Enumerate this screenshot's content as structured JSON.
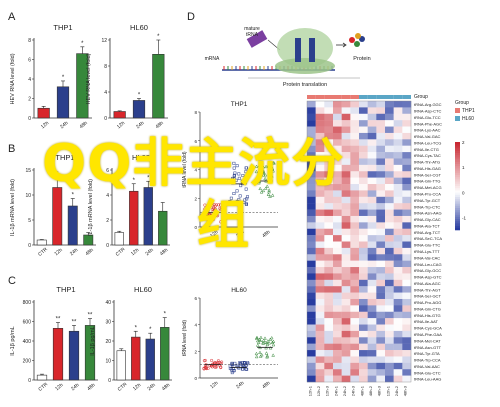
{
  "panels": {
    "A": "A",
    "B": "B",
    "C": "C",
    "D": "D"
  },
  "bar_charts": [
    {
      "id": "A1",
      "title": "THP1",
      "ylabel": "HEV RNA level (fold)",
      "cats": [
        "12h",
        "24h",
        "48h"
      ],
      "values": [
        1.0,
        3.2,
        6.6
      ],
      "err": [
        0.2,
        0.6,
        0.7
      ],
      "ymax": 8,
      "ticks": [
        0,
        2,
        4,
        6,
        8
      ],
      "colors": [
        "#d8262b",
        "#2b3f8c",
        "#37883b"
      ],
      "stars": [
        "",
        "*",
        "*"
      ]
    },
    {
      "id": "A2",
      "title": "HL60",
      "ylabel": "HEV RNA level (fold)",
      "cats": [
        "12h",
        "24h",
        "48h"
      ],
      "values": [
        1.0,
        2.7,
        9.8
      ],
      "err": [
        0.1,
        0.3,
        2.2
      ],
      "ymax": 12,
      "ticks": [
        0,
        4,
        8,
        12
      ],
      "colors": [
        "#d8262b",
        "#2b3f8c",
        "#37883b"
      ],
      "stars": [
        "",
        "*",
        "*"
      ]
    },
    {
      "id": "B1",
      "title": "THP1",
      "ylabel": "IL-1β mRNA level (fold)",
      "cats": [
        "CTR",
        "12h",
        "24h",
        "48h"
      ],
      "values": [
        1.0,
        11.5,
        7.8,
        2.0
      ],
      "err": [
        0.1,
        2.0,
        1.5,
        0.5
      ],
      "ymax": 15,
      "ticks": [
        0,
        5,
        10,
        15
      ],
      "colors": [
        "#ffffff",
        "#d8262b",
        "#2b3f8c",
        "#37883b"
      ],
      "stars": [
        "",
        "*",
        "*",
        ""
      ]
    },
    {
      "id": "B2",
      "title": "HL60",
      "ylabel": "IL-1β mRNA level (fold)",
      "cats": [
        "CTR",
        "12h",
        "24h",
        "48h"
      ],
      "values": [
        1.0,
        4.3,
        4.6,
        2.7
      ],
      "err": [
        0.1,
        0.6,
        0.5,
        0.7
      ],
      "ymax": 6,
      "ticks": [
        0,
        2,
        4,
        6
      ],
      "colors": [
        "#ffffff",
        "#d8262b",
        "#2b3f8c",
        "#37883b"
      ],
      "stars": [
        "",
        "*",
        "*",
        ""
      ]
    },
    {
      "id": "C1",
      "title": "THP1",
      "ylabel": "IL-1β pg/mL",
      "cats": [
        "CTR",
        "12h",
        "24h",
        "48h"
      ],
      "values": [
        50,
        530,
        500,
        560
      ],
      "err": [
        10,
        60,
        60,
        70
      ],
      "ymax": 800,
      "ticks": [
        0,
        200,
        400,
        600,
        800
      ],
      "colors": [
        "#ffffff",
        "#d8262b",
        "#2b3f8c",
        "#37883b"
      ],
      "stars": [
        "",
        "**",
        "**",
        "**"
      ]
    },
    {
      "id": "C2",
      "title": "HL60",
      "ylabel": "IL-1β pg/mL",
      "cats": [
        "CTR",
        "12h",
        "24h",
        "48h"
      ],
      "values": [
        15,
        22,
        21,
        27
      ],
      "err": [
        1,
        3,
        3,
        5
      ],
      "ymax": 40,
      "ticks": [
        0,
        10,
        20,
        30,
        40
      ],
      "colors": [
        "#ffffff",
        "#d8262b",
        "#2b3f8c",
        "#37883b"
      ],
      "stars": [
        "",
        "*",
        "*",
        "*"
      ]
    }
  ],
  "scatter_charts": [
    {
      "id": "D1",
      "title": "THP1",
      "ylabel": "tRNA level (fold)",
      "cats": [
        "12h",
        "24h",
        "48h"
      ],
      "ymax": 8,
      "ticks": [
        0,
        2,
        4,
        6,
        8
      ],
      "colors": [
        "#d8262b",
        "#2b3f8c",
        "#37883b"
      ],
      "means": [
        1.0,
        3.0,
        3.2
      ],
      "spread": [
        0.8,
        1.8,
        1.6
      ]
    },
    {
      "id": "D2",
      "title": "HL60",
      "ylabel": "tRNA level (fold)",
      "cats": [
        "12h",
        "24h",
        "48h"
      ],
      "ymax": 6,
      "ticks": [
        0,
        2,
        4,
        6
      ],
      "colors": [
        "#d8262b",
        "#2b3f8c",
        "#37883b"
      ],
      "means": [
        1.0,
        0.8,
        2.3
      ],
      "spread": [
        0.4,
        0.5,
        1.0
      ]
    }
  ],
  "schematic": {
    "mature_trna": "mature\ntRNA",
    "mrna": "mRNA",
    "protein": "Protein",
    "caption": "Protein translation"
  },
  "heatmap": {
    "group_label": "Group",
    "legend_title": "Group",
    "legend_items": [
      {
        "name": "THP1",
        "color": "#e87a72"
      },
      {
        "name": "HL60",
        "color": "#5aa6c6"
      }
    ],
    "scale_ticks": [
      "2",
      "1",
      "0",
      "-1"
    ],
    "n_cols": 12,
    "thp1_cols": 6,
    "col_labels": [
      "12h-1",
      "12h-2",
      "12h-3",
      "24h-1",
      "24h-2",
      "24h-3",
      "48h-1",
      "48h-2",
      "48h-3",
      "12h-1",
      "24h-2",
      "48h-3"
    ],
    "rows": [
      "tRNA-Arg-GGC",
      "tRNA-Asp-CTC",
      "tRNA-Glu-TCC",
      "tRNA-Phe-AGC",
      "tRNA-Lys-AAC",
      "tRNA-Val-GAC",
      "tRNA-Leu-TCG",
      "tRNA-Ile-CTG",
      "tRNA-Cys-TAC",
      "tRNA-Thr-ATG",
      "tRNA-His-GAG",
      "tRNA-Ser-CGT",
      "tRNA-Gln-TTG",
      "tRNA-Met-ACG",
      "tRNA-Pro-CCA",
      "tRNA-Tyr-GCT",
      "tRNA-Trp-CTC",
      "tRNA-Asn-AAG",
      "tRNA-Gly-CAC",
      "tRNA-Ala-TCT",
      "tRNA-Arg-TCT",
      "tRNA-SeC-TCA",
      "tRNA-Glu-TTC",
      "tRNA-Lys-TTT",
      "tRNA-Val-CAC",
      "tRNA-Leu-CAG",
      "tRNA-Gly-GCC",
      "tRNA-Asp-GTC",
      "tRNA-Ala-AGC",
      "tRNA-Thr-AGT",
      "tRNA-Ser-GCT",
      "tRNA-Pro-AGG",
      "tRNA-Gln-CTG",
      "tRNA-His-GTG",
      "tRNA-Ile-AAT",
      "tRNA-Cys-GCA",
      "tRNA-Phe-GAA",
      "tRNA-Met-CAT",
      "tRNA-Asn-GTT",
      "tRNA-Tyr-GTA",
      "tRNA-Trp-CCA",
      "tRNA-Val-AAC",
      "tRNA-Glu-CTC",
      "tRNA-Leu-AAG"
    ]
  },
  "watermark": {
    "line1": "QQ非主流分",
    "line2": "组"
  }
}
